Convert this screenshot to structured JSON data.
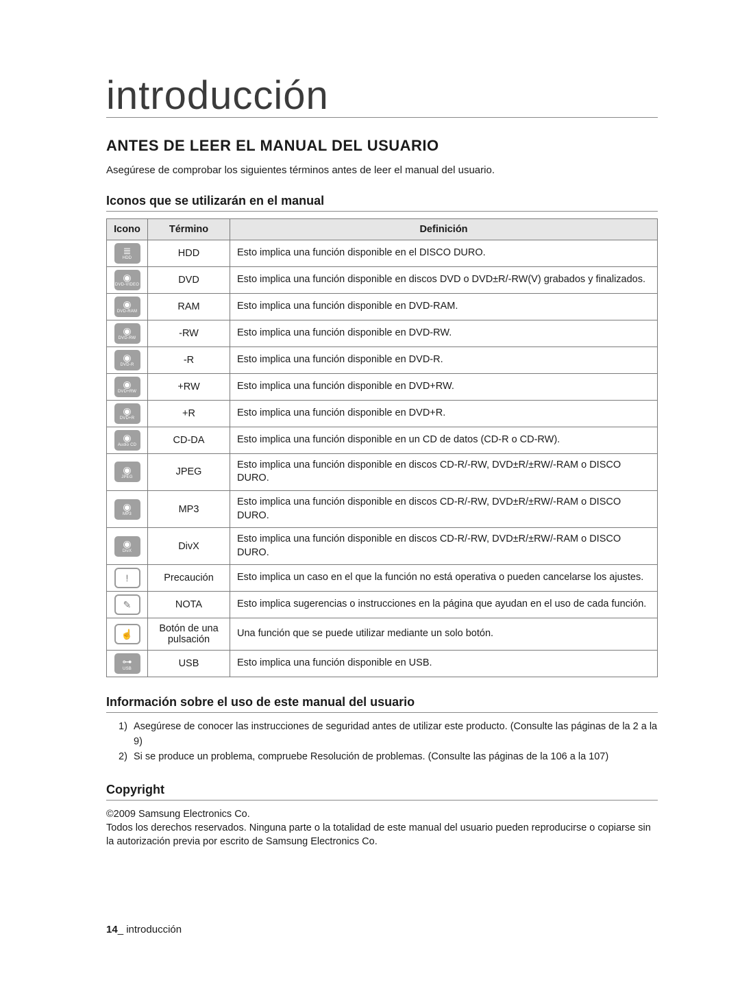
{
  "page": {
    "title": "introducción",
    "section_title": "ANTES DE LEER EL MANUAL DEL USUARIO",
    "intro": "Asegúrese de comprobar los siguientes términos antes de leer el manual del usuario.",
    "subtitle_icons": "Iconos que se utilizarán en el manual",
    "subtitle_info": "Información sobre el uso de este manual del usuario",
    "subtitle_copyright": "Copyright",
    "page_number": "14",
    "footer_section": "introducción"
  },
  "table": {
    "headers": {
      "icono": "Icono",
      "termino": "Término",
      "definicion": "Definición"
    },
    "rows": [
      {
        "icon_glyph": "≣",
        "icon_label": "HDD",
        "icon_style": "gray",
        "term": "HDD",
        "def": "Esto implica una función disponible en el DISCO DURO."
      },
      {
        "icon_glyph": "◉",
        "icon_label": "DVD-VIDEO",
        "icon_style": "gray",
        "term": "DVD",
        "def": "Esto implica una función disponible en discos DVD o DVD±R/-RW(V) grabados y finalizados."
      },
      {
        "icon_glyph": "◉",
        "icon_label": "DVD-RAM",
        "icon_style": "gray",
        "term": "RAM",
        "def": "Esto implica una función disponible en DVD-RAM."
      },
      {
        "icon_glyph": "◉",
        "icon_label": "DVD-RW",
        "icon_style": "gray",
        "term": "-RW",
        "def": "Esto implica una función disponible en DVD-RW."
      },
      {
        "icon_glyph": "◉",
        "icon_label": "DVD-R",
        "icon_style": "gray",
        "term": "-R",
        "def": "Esto implica una función disponible en DVD-R."
      },
      {
        "icon_glyph": "◉",
        "icon_label": "DVD+RW",
        "icon_style": "gray",
        "term": "+RW",
        "def": "Esto implica una función disponible en DVD+RW."
      },
      {
        "icon_glyph": "◉",
        "icon_label": "DVD+R",
        "icon_style": "gray",
        "term": "+R",
        "def": "Esto implica una función disponible en DVD+R."
      },
      {
        "icon_glyph": "◉",
        "icon_label": "Audio CD",
        "icon_style": "gray",
        "term": "CD-DA",
        "def": "Esto implica una función disponible en un CD de datos (CD-R o CD-RW)."
      },
      {
        "icon_glyph": "◉",
        "icon_label": "JPEG",
        "icon_style": "gray",
        "term": "JPEG",
        "def": "Esto implica una función disponible en discos CD-R/-RW, DVD±R/±RW/-RAM o DISCO DURO."
      },
      {
        "icon_glyph": "◉",
        "icon_label": "MP3",
        "icon_style": "gray",
        "term": "MP3",
        "def": "Esto implica una función disponible en discos CD-R/-RW, DVD±R/±RW/-RAM o DISCO DURO."
      },
      {
        "icon_glyph": "◉",
        "icon_label": "DivX",
        "icon_style": "gray",
        "term": "DivX",
        "def": "Esto implica una función disponible en discos CD-R/-RW, DVD±R/±RW/-RAM o DISCO DURO."
      },
      {
        "icon_glyph": "!",
        "icon_label": "",
        "icon_style": "white",
        "term": "Precaución",
        "def": "Esto implica un caso en el que la función no está operativa o pueden cancelarse los ajustes."
      },
      {
        "icon_glyph": "✎",
        "icon_label": "",
        "icon_style": "white",
        "term": "NOTA",
        "def": "Esto implica sugerencias o instrucciones en la página que ayudan en el uso de cada función."
      },
      {
        "icon_glyph": "☝",
        "icon_label": "",
        "icon_style": "white",
        "term": "Botón de una pulsación",
        "def": "Una función que se puede utilizar mediante un solo botón."
      },
      {
        "icon_glyph": "⊶",
        "icon_label": "USB",
        "icon_style": "gray",
        "term": "USB",
        "def": "Esto implica una función disponible en USB."
      }
    ]
  },
  "info_list": [
    {
      "num": "1)",
      "text": "Asegúrese de conocer las instrucciones de seguridad antes de utilizar este producto. (Consulte las páginas de la 2 a la 9)"
    },
    {
      "num": "2)",
      "text": "Si se produce un problema, compruebe Resolución de problemas. (Consulte las páginas de la 106 a la 107)"
    }
  ],
  "copyright": {
    "line1": "©2009 Samsung Electronics Co.",
    "line2": "Todos los derechos reservados. Ninguna parte o la totalidad de este manual del usuario pueden reproducirse o copiarse sin la autorización previa por escrito de Samsung Electronics Co."
  }
}
